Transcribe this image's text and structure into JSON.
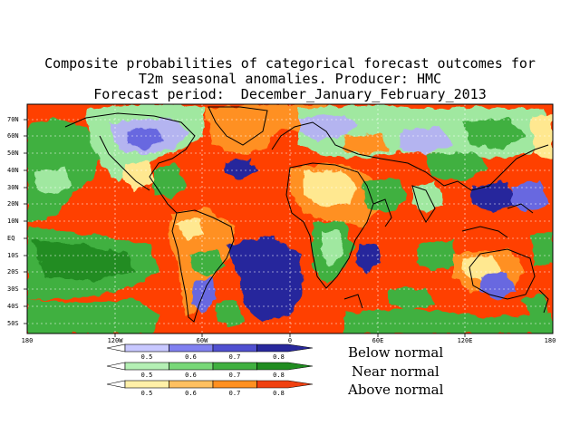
{
  "title": {
    "line1": "Composite probabilities of categorical forecast outcomes for",
    "line2": "T2m seasonal anomalies. Producer: HMC",
    "line3": "Forecast period:  December_January_February_2013"
  },
  "map": {
    "lat_ticks": [
      "70N",
      "60N",
      "50N",
      "40N",
      "30N",
      "20N",
      "10N",
      "EQ",
      "10S",
      "20S",
      "30S",
      "40S",
      "50S"
    ],
    "lon_ticks": [
      "180",
      "120W",
      "60W",
      "0",
      "60E",
      "120E",
      "180"
    ],
    "grid": true,
    "projection": "lat-lon"
  },
  "colorbars": [
    {
      "label": "Below normal",
      "ticks": [
        "0.5",
        "0.6",
        "0.7",
        "0.8"
      ],
      "colors": [
        "#c8c8ff",
        "#8080f0",
        "#5050d0",
        "#28289c"
      ]
    },
    {
      "label": "Near normal",
      "ticks": [
        "0.5",
        "0.6",
        "0.7",
        "0.8"
      ],
      "colors": [
        "#b4f0b4",
        "#78d878",
        "#40b040",
        "#208c20"
      ]
    },
    {
      "label": "Above normal",
      "ticks": [
        "0.5",
        "0.6",
        "0.7",
        "0.8"
      ],
      "colors": [
        "#fff0a8",
        "#ffc060",
        "#ff9020",
        "#f04010"
      ]
    }
  ],
  "colors": {
    "below_dark": "#28289c",
    "below_mid": "#6868e0",
    "below_light": "#b4b4f0",
    "near_dark": "#208c20",
    "near_mid": "#40b040",
    "near_light": "#a0e8a0",
    "above_dark": "#ff4000",
    "above_mid": "#ff9020",
    "above_light": "#ffe890",
    "coastline": "#000000",
    "background": "#ffffff"
  }
}
